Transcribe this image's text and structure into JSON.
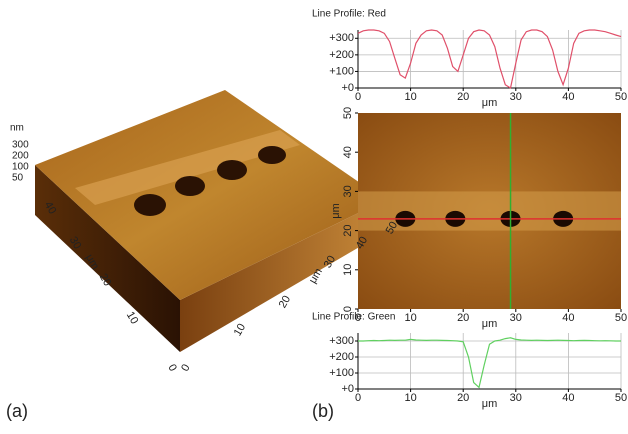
{
  "panel_labels": [
    "(a)",
    "(b)"
  ],
  "chart_data": [
    {
      "type": "line",
      "title": "Line Profile: Red",
      "xlabel": "μm",
      "x": [
        0,
        1,
        2,
        3,
        4,
        5,
        6,
        7,
        8,
        9,
        10,
        11,
        12,
        13,
        14,
        15,
        16,
        17,
        18,
        19,
        20,
        21,
        22,
        23,
        24,
        25,
        26,
        27,
        28,
        29,
        30,
        31,
        32,
        33,
        34,
        35,
        36,
        37,
        38,
        39,
        40,
        41,
        42,
        43,
        44,
        45,
        46,
        47,
        48,
        49,
        50
      ],
      "series": [
        {
          "color": "#e0506a",
          "values": [
            330,
            345,
            350,
            350,
            345,
            330,
            280,
            180,
            80,
            60,
            150,
            270,
            320,
            345,
            350,
            345,
            320,
            240,
            130,
            100,
            200,
            300,
            340,
            350,
            345,
            320,
            250,
            120,
            20,
            0,
            150,
            290,
            340,
            350,
            350,
            340,
            310,
            230,
            100,
            20,
            120,
            270,
            330,
            345,
            350,
            350,
            345,
            340,
            330,
            320,
            310
          ]
        }
      ],
      "xlim": [
        0,
        50
      ],
      "xticks": [
        0,
        10,
        20,
        30,
        40,
        50
      ],
      "ylim": [
        0,
        350
      ],
      "yticks": [
        {
          "value": 0,
          "label": "+0"
        },
        {
          "value": 100,
          "label": "+100"
        },
        {
          "value": 200,
          "label": "+200"
        },
        {
          "value": 300,
          "label": "+300"
        }
      ],
      "grid": true
    },
    {
      "type": "image",
      "xlabel": "μm",
      "ylabel": "μm",
      "xlim": [
        0,
        50
      ],
      "xticks": [
        0,
        10,
        20,
        30,
        40,
        50
      ],
      "ylim": [
        0,
        50
      ],
      "yticks": [
        0,
        10,
        20,
        30,
        40,
        50
      ],
      "hline": 23,
      "hline_color": "#e03030",
      "vline": 29,
      "vline_color": "#30b030"
    },
    {
      "type": "line",
      "title": "Line Profile: Green",
      "xlabel": "μm",
      "x": [
        0,
        1,
        2,
        3,
        4,
        5,
        6,
        7,
        8,
        9,
        10,
        11,
        12,
        13,
        14,
        15,
        16,
        17,
        18,
        19,
        20,
        21,
        22,
        23,
        24,
        25,
        26,
        27,
        28,
        29,
        30,
        31,
        32,
        33,
        34,
        35,
        36,
        37,
        38,
        39,
        40,
        41,
        42,
        43,
        44,
        45,
        46,
        47,
        48,
        49,
        50
      ],
      "series": [
        {
          "color": "#60d060",
          "values": [
            300,
            300,
            302,
            303,
            302,
            303,
            305,
            304,
            305,
            305,
            310,
            306,
            305,
            304,
            305,
            305,
            304,
            303,
            302,
            300,
            295,
            200,
            40,
            10,
            150,
            280,
            300,
            305,
            315,
            320,
            310,
            306,
            305,
            304,
            305,
            304,
            303,
            304,
            305,
            304,
            303,
            302,
            303,
            304,
            303,
            302,
            301,
            302,
            301,
            300,
            300
          ]
        }
      ],
      "xlim": [
        0,
        50
      ],
      "xticks": [
        0,
        10,
        20,
        30,
        40,
        50
      ],
      "ylim": [
        0,
        350
      ],
      "yticks": [
        {
          "value": 0,
          "label": "+0"
        },
        {
          "value": 100,
          "label": "+100"
        },
        {
          "value": 200,
          "label": "+200"
        },
        {
          "value": 300,
          "label": "+300"
        }
      ],
      "grid": true
    },
    {
      "type": "surface",
      "zlabel": "nm",
      "zticks": [
        300,
        200,
        100,
        50
      ],
      "xlabel": "μm",
      "xticks": [
        0,
        10,
        20,
        30,
        40,
        50
      ],
      "ylabel": "μm",
      "yticks": [
        0,
        10,
        20,
        30,
        40
      ]
    }
  ]
}
